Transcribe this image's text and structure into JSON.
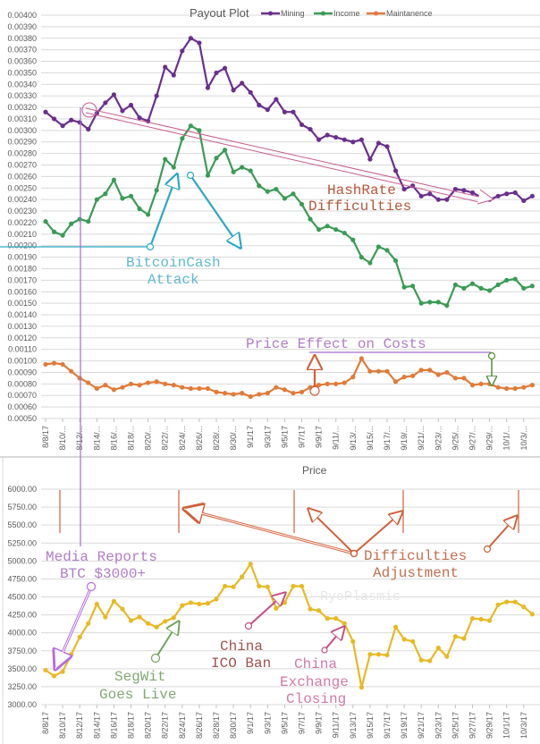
{
  "chart_data": [
    {
      "type": "line",
      "title": "Payout Plot",
      "xlabel": "",
      "ylabel": "",
      "ylim": [
        0.0005,
        0.004
      ],
      "ytick_step": 0.0001,
      "grid": true,
      "legend_position": "top",
      "x": [
        "8/8/17",
        "8/9/17",
        "8/10/17",
        "8/11/17",
        "8/12/17",
        "8/13/17",
        "8/14/17",
        "8/15/17",
        "8/16/17",
        "8/17/17",
        "8/18/17",
        "8/19/17",
        "8/20/17",
        "8/21/17",
        "8/22/17",
        "8/23/17",
        "8/24/17",
        "8/25/17",
        "8/26/17",
        "8/27/17",
        "8/28/17",
        "8/29/17",
        "8/30/17",
        "8/31/17",
        "9/1/17",
        "9/2/17",
        "9/3/17",
        "9/4/17",
        "9/5/17",
        "9/6/17",
        "9/7/17",
        "9/8/17",
        "9/9/17",
        "9/10/17",
        "9/11/17",
        "9/12/17",
        "9/13/17",
        "9/14/17",
        "9/15/17",
        "9/16/17",
        "9/17/17",
        "9/18/17",
        "9/19/17",
        "9/20/17",
        "9/21/17",
        "9/22/17",
        "9/23/17",
        "9/24/17",
        "9/25/17",
        "9/26/17",
        "9/27/17",
        "9/28/17",
        "9/29/17",
        "9/30/17",
        "10/1/17",
        "10/2/17",
        "10/3/17",
        "10/4/17"
      ],
      "xtick_labels": [
        "8/8/17",
        "8/10/...",
        "8/12/...",
        "8/14/...",
        "8/16/...",
        "8/18/...",
        "8/20/...",
        "8/22/...",
        "8/24/...",
        "8/26/...",
        "8/28/...",
        "8/30/...",
        "9/1/17",
        "9/3/17",
        "9/5/17",
        "9/7/17",
        "9/9/17",
        "9/11/...",
        "9/13/...",
        "9/15/...",
        "9/17/...",
        "9/19/...",
        "9/21/...",
        "9/23/...",
        "9/25/...",
        "9/27/...",
        "9/29/...",
        "10/1/...",
        "10/3/..."
      ],
      "series": [
        {
          "name": "Mining",
          "color": "#6a2f8c",
          "values": [
            0.00316,
            0.0031,
            0.00304,
            0.00309,
            0.00307,
            0.00301,
            0.00315,
            0.00324,
            0.00331,
            0.00317,
            0.00322,
            0.00311,
            0.00308,
            0.0033,
            0.00355,
            0.00348,
            0.00369,
            0.0038,
            0.00376,
            0.00337,
            0.0035,
            0.00354,
            0.00335,
            0.00341,
            0.00333,
            0.00322,
            0.00318,
            0.00327,
            0.00316,
            0.00316,
            0.00305,
            0.00301,
            0.00292,
            0.00296,
            0.00294,
            0.00292,
            0.0029,
            0.00292,
            0.00275,
            0.00289,
            0.00286,
            0.00265,
            0.00249,
            0.00252,
            0.00243,
            0.00245,
            0.0024,
            0.0024,
            0.00249,
            0.00248,
            0.00246,
            0.00242,
            0.0024,
            0.00243,
            0.00245,
            0.00246,
            0.00239,
            0.00243
          ]
        },
        {
          "name": "Income",
          "color": "#3a9b56",
          "values": [
            0.00221,
            0.00212,
            0.00209,
            0.00219,
            0.00223,
            0.00221,
            0.0024,
            0.00245,
            0.00257,
            0.00241,
            0.00243,
            0.00232,
            0.00227,
            0.00248,
            0.00275,
            0.00268,
            0.00293,
            0.00304,
            0.003,
            0.00261,
            0.00276,
            0.00283,
            0.00264,
            0.00268,
            0.00265,
            0.00252,
            0.00247,
            0.00249,
            0.00241,
            0.00245,
            0.00236,
            0.00223,
            0.00214,
            0.00217,
            0.00214,
            0.00211,
            0.00205,
            0.0019,
            0.00185,
            0.00199,
            0.00196,
            0.00187,
            0.00164,
            0.00165,
            0.0015,
            0.00151,
            0.00151,
            0.00148,
            0.00166,
            0.00163,
            0.00167,
            0.00163,
            0.00161,
            0.00166,
            0.0017,
            0.00171,
            0.00163,
            0.00165
          ]
        },
        {
          "name": "Maintanence",
          "color": "#e07b39",
          "values": [
            0.00097,
            0.00098,
            0.00097,
            0.00091,
            0.00085,
            0.00081,
            0.00076,
            0.00079,
            0.00075,
            0.00077,
            0.0008,
            0.00079,
            0.00081,
            0.00082,
            0.0008,
            0.00079,
            0.00077,
            0.00076,
            0.00076,
            0.00076,
            0.00073,
            0.00072,
            0.00071,
            0.00072,
            0.00069,
            0.00071,
            0.00072,
            0.00077,
            0.00075,
            0.00072,
            0.00073,
            0.00077,
            0.00079,
            0.0008,
            0.0008,
            0.00081,
            0.00086,
            0.00102,
            0.00091,
            0.00091,
            0.00091,
            0.00082,
            0.00086,
            0.00087,
            0.00092,
            0.00092,
            0.00088,
            0.0009,
            0.00085,
            0.00085,
            0.00079,
            0.0008,
            0.0008,
            0.00077,
            0.00076,
            0.00076,
            0.00077,
            0.00079
          ]
        }
      ],
      "annotations": {
        "hashrate": [
          "HashRate",
          "Difficulties"
        ],
        "bitcoincash": [
          "BitcoinCash",
          "Attack"
        ],
        "price_effect": "Price Effect on Costs"
      }
    },
    {
      "type": "line",
      "title": "Price",
      "xlabel": "",
      "ylabel": "",
      "ylim": [
        3000,
        6000
      ],
      "ytick_step": 250,
      "grid": true,
      "x": [
        "8/8/17",
        "8/9/17",
        "8/10/17",
        "8/11/17",
        "8/12/17",
        "8/13/17",
        "8/14/17",
        "8/15/17",
        "8/16/17",
        "8/17/17",
        "8/18/17",
        "8/19/17",
        "8/20/17",
        "8/21/17",
        "8/22/17",
        "8/23/17",
        "8/24/17",
        "8/25/17",
        "8/26/17",
        "8/27/17",
        "8/28/17",
        "8/29/17",
        "8/30/17",
        "8/31/17",
        "9/1/17",
        "9/2/17",
        "9/3/17",
        "9/4/17",
        "9/5/17",
        "9/6/17",
        "9/7/17",
        "9/8/17",
        "9/9/17",
        "9/10/17",
        "9/11/17",
        "9/12/17",
        "9/13/17",
        "9/14/17",
        "9/15/17",
        "9/16/17",
        "9/17/17",
        "9/18/17",
        "9/19/17",
        "9/20/17",
        "9/21/17",
        "9/22/17",
        "9/23/17",
        "9/24/17",
        "9/25/17",
        "9/26/17",
        "9/27/17",
        "9/28/17",
        "9/29/17",
        "9/30/17",
        "10/1/17",
        "10/2/17",
        "10/3/17",
        "10/4/17"
      ],
      "xtick_labels": [
        "8/8/17",
        "8/10/17",
        "8/12/17",
        "8/14/17",
        "8/16/17",
        "8/18/17",
        "8/20/17",
        "8/22/17",
        "8/24/17",
        "8/26/17",
        "8/28/17",
        "8/30/17",
        "9/1/17",
        "9/3/17",
        "9/5/17",
        "9/7/17",
        "9/9/17",
        "9/11/17",
        "9/13/17",
        "9/15/17",
        "9/17/17",
        "9/19/17",
        "9/21/17",
        "9/23/17",
        "9/25/17",
        "9/27/17",
        "9/29/17",
        "10/1/17",
        "10/3/17"
      ],
      "series": [
        {
          "name": "Price",
          "color": "#e8b923",
          "values": [
            3480,
            3400,
            3460,
            3700,
            3940,
            4130,
            4400,
            4220,
            4440,
            4330,
            4170,
            4220,
            4130,
            4080,
            4160,
            4210,
            4380,
            4420,
            4400,
            4410,
            4470,
            4650,
            4640,
            4780,
            4960,
            4650,
            4640,
            4340,
            4420,
            4650,
            4650,
            4330,
            4310,
            4200,
            4200,
            4130,
            3880,
            3240,
            3700,
            3700,
            3690,
            4080,
            3910,
            3880,
            3620,
            3610,
            3790,
            3670,
            3950,
            3920,
            4200,
            4190,
            4170,
            4390,
            4430,
            4430,
            4360,
            4260
          ]
        }
      ],
      "annotations": {
        "media": [
          "Media Reports",
          "BTC $3000+"
        ],
        "segwit": [
          "SegWit",
          "Goes Live"
        ],
        "china_ico": [
          "China",
          "ICO Ban"
        ],
        "china_exchange": [
          "China",
          "Exchange",
          "Closing"
        ],
        "difficulties": [
          "Difficulties",
          "Adjustment"
        ],
        "watermark": "© RyoPlasmic"
      }
    }
  ]
}
